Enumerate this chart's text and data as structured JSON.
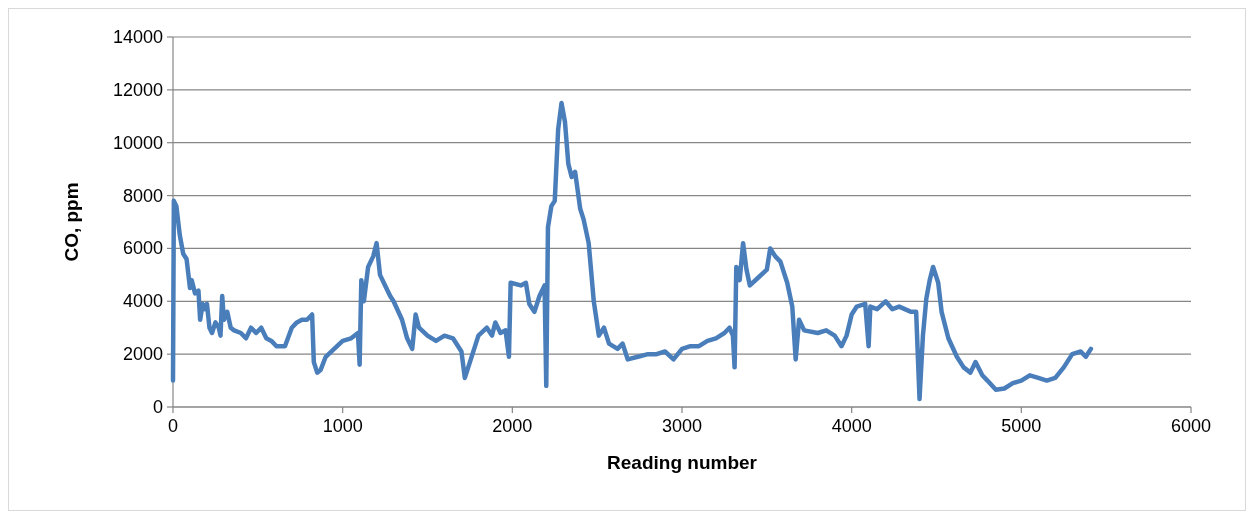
{
  "chart_data": {
    "type": "line",
    "xlabel": "Reading number",
    "ylabel": "CO, ppm",
    "xlim": [
      0,
      6000
    ],
    "xticks": [
      0,
      1000,
      2000,
      3000,
      4000,
      5000,
      6000
    ],
    "ylim": [
      0,
      14000
    ],
    "yticks": [
      0,
      2000,
      4000,
      6000,
      8000,
      10000,
      12000,
      14000
    ],
    "grid": "y",
    "marker": "none",
    "line_style": "solid",
    "series": [
      {
        "color": "#4a7ebb",
        "x": [
          0,
          5,
          20,
          40,
          60,
          80,
          100,
          110,
          130,
          150,
          160,
          175,
          190,
          200,
          215,
          230,
          250,
          270,
          280,
          290,
          300,
          320,
          340,
          360,
          400,
          430,
          460,
          490,
          520,
          550,
          580,
          610,
          660,
          700,
          730,
          760,
          790,
          820,
          830,
          850,
          870,
          900,
          950,
          1000,
          1050,
          1090,
          1100,
          1110,
          1125,
          1150,
          1180,
          1200,
          1220,
          1250,
          1280,
          1300,
          1350,
          1380,
          1410,
          1430,
          1450,
          1500,
          1550,
          1600,
          1650,
          1700,
          1720,
          1750,
          1800,
          1850,
          1880,
          1900,
          1930,
          1960,
          1980,
          1990,
          2050,
          2080,
          2100,
          2130,
          2160,
          2190,
          2200,
          2210,
          2230,
          2250,
          2270,
          2290,
          2310,
          2330,
          2350,
          2370,
          2400,
          2420,
          2450,
          2480,
          2510,
          2540,
          2570,
          2620,
          2650,
          2680,
          2740,
          2800,
          2850,
          2900,
          2950,
          3000,
          3050,
          3100,
          3150,
          3200,
          3250,
          3280,
          3300,
          3310,
          3320,
          3340,
          3360,
          3380,
          3400,
          3450,
          3500,
          3520,
          3550,
          3580,
          3620,
          3650,
          3670,
          3690,
          3720,
          3800,
          3850,
          3900,
          3940,
          3970,
          4000,
          4030,
          4080,
          4100,
          4110,
          4150,
          4200,
          4240,
          4280,
          4350,
          4380,
          4400,
          4420,
          4440,
          4460,
          4480,
          4510,
          4530,
          4570,
          4620,
          4660,
          4700,
          4730,
          4770,
          4800,
          4850,
          4900,
          4950,
          5000,
          5050,
          5100,
          5150,
          5200,
          5250,
          5300,
          5350,
          5380,
          5410
        ],
        "values": [
          1000,
          7800,
          7600,
          6500,
          5800,
          5600,
          4500,
          4800,
          4300,
          4400,
          3300,
          3900,
          3700,
          3900,
          3000,
          2800,
          3200,
          3000,
          2700,
          4200,
          3300,
          3600,
          3000,
          2900,
          2800,
          2600,
          3000,
          2800,
          3000,
          2600,
          2500,
          2300,
          2300,
          3000,
          3200,
          3300,
          3300,
          3500,
          1700,
          1300,
          1400,
          1900,
          2200,
          2500,
          2600,
          2800,
          1600,
          4800,
          4000,
          5300,
          5700,
          6200,
          5000,
          4600,
          4200,
          4000,
          3300,
          2600,
          2200,
          3500,
          3000,
          2700,
          2500,
          2700,
          2600,
          2100,
          1100,
          1700,
          2700,
          3000,
          2700,
          3200,
          2800,
          2900,
          1900,
          4700,
          4600,
          4700,
          3900,
          3600,
          4200,
          4600,
          800,
          6800,
          7600,
          7800,
          10500,
          11500,
          10800,
          9200,
          8700,
          8900,
          7500,
          7100,
          6200,
          4000,
          2700,
          3000,
          2400,
          2200,
          2400,
          1800,
          1900,
          2000,
          2000,
          2100,
          1800,
          2200,
          2300,
          2300,
          2500,
          2600,
          2800,
          3000,
          2700,
          1500,
          5300,
          4800,
          6200,
          5200,
          4600,
          4900,
          5200,
          6000,
          5700,
          5500,
          4700,
          3800,
          1800,
          3300,
          2900,
          2800,
          2900,
          2700,
          2300,
          2700,
          3500,
          3800,
          3900,
          2300,
          3800,
          3700,
          4000,
          3700,
          3800,
          3600,
          3600,
          300,
          2700,
          4100,
          4800,
          5300,
          4700,
          3600,
          2600,
          1900,
          1500,
          1300,
          1700,
          1200,
          1000,
          650,
          700,
          900,
          1000,
          1200,
          1100,
          1000,
          1100,
          1500,
          2000,
          2100,
          1900,
          2200
        ]
      }
    ]
  }
}
